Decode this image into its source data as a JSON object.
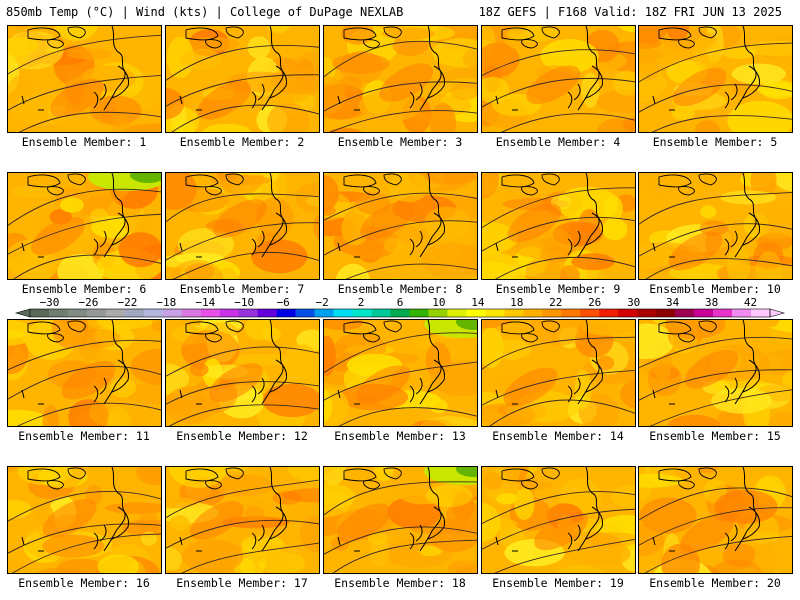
{
  "header": {
    "left": "850mb Temp (°C) | Wind (kts) | College of DuPage NEXLAB",
    "right": "18Z GEFS | F168 Valid: 18Z FRI JUN 13 2025"
  },
  "members": [
    {
      "label": "Ensemble Member: 1"
    },
    {
      "label": "Ensemble Member: 2"
    },
    {
      "label": "Ensemble Member: 3"
    },
    {
      "label": "Ensemble Member: 4"
    },
    {
      "label": "Ensemble Member: 5"
    },
    {
      "label": "Ensemble Member: 6"
    },
    {
      "label": "Ensemble Member: 7"
    },
    {
      "label": "Ensemble Member: 8"
    },
    {
      "label": "Ensemble Member: 9"
    },
    {
      "label": "Ensemble Member: 10"
    },
    {
      "label": "Ensemble Member: 11"
    },
    {
      "label": "Ensemble Member: 12"
    },
    {
      "label": "Ensemble Member: 13"
    },
    {
      "label": "Ensemble Member: 14"
    },
    {
      "label": "Ensemble Member: 15"
    },
    {
      "label": "Ensemble Member: 16"
    },
    {
      "label": "Ensemble Member: 17"
    },
    {
      "label": "Ensemble Member: 18"
    },
    {
      "label": "Ensemble Member: 19"
    },
    {
      "label": "Ensemble Member: 20"
    }
  ],
  "colorbar": {
    "tick_labels": [
      "−30",
      "−26",
      "−22",
      "−18",
      "−14",
      "−10",
      "−6",
      "−2",
      "2",
      "6",
      "10",
      "14",
      "18",
      "22",
      "26",
      "30",
      "34",
      "38",
      "42"
    ],
    "colors": [
      "#5a6a5a",
      "#6e7e70",
      "#828a84",
      "#969a96",
      "#aaaaaa",
      "#a0a8c0",
      "#b4b4e0",
      "#c8a0e6",
      "#d878e0",
      "#e650e6",
      "#c832e6",
      "#9632dc",
      "#6400dc",
      "#0000e6",
      "#0050e6",
      "#00a0f0",
      "#00dcf0",
      "#00e6c8",
      "#00c896",
      "#00aa50",
      "#32b400",
      "#96d200",
      "#dcf000",
      "#ffff00",
      "#ffe600",
      "#ffc800",
      "#ffb000",
      "#ff9600",
      "#ff7800",
      "#ff5000",
      "#f01e00",
      "#d20000",
      "#aa0000",
      "#8c0000",
      "#a00050",
      "#c80096",
      "#e632c8",
      "#f08cf0",
      "#ffc8ff"
    ]
  }
}
